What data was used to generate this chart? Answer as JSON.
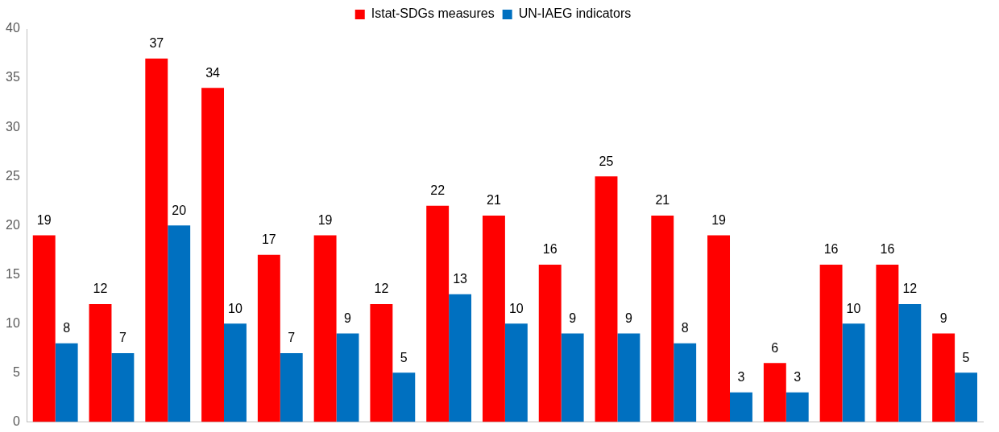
{
  "chart_data": {
    "type": "bar",
    "categories": [
      null,
      null,
      null,
      null,
      null,
      null,
      null,
      null,
      null,
      null,
      null,
      null,
      null,
      null,
      null,
      null,
      null
    ],
    "series": [
      {
        "name": "Istat-SDGs measures",
        "color": "#ff0000",
        "values": [
          19,
          12,
          37,
          34,
          17,
          19,
          12,
          22,
          21,
          16,
          25,
          21,
          19,
          6,
          16,
          16,
          9
        ]
      },
      {
        "name": "UN-IAEG indicators",
        "color": "#0070c0",
        "values": [
          8,
          7,
          20,
          10,
          7,
          9,
          5,
          13,
          10,
          9,
          9,
          8,
          3,
          3,
          10,
          12,
          5
        ]
      }
    ],
    "ylim": [
      0,
      40
    ],
    "yticks": [
      0,
      5,
      10,
      15,
      20,
      25,
      30,
      35,
      40
    ],
    "grid": false,
    "legend": "top",
    "data_labels": true
  }
}
